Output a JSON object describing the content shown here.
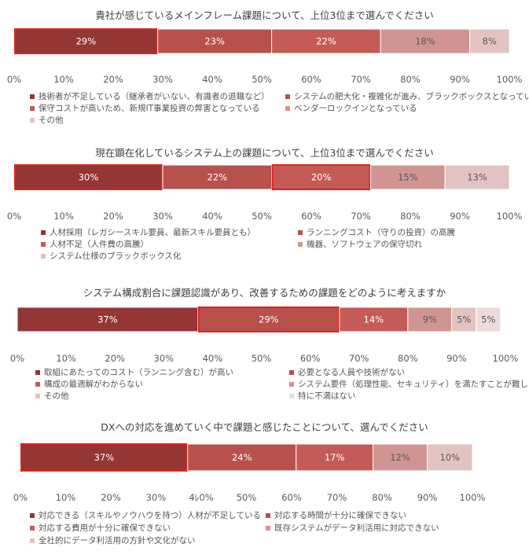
{
  "chart_data": [
    {
      "type": "bar",
      "orientation": "horizontal-stacked-100",
      "title": "貴社が感じているメインフレーム課題について、上位3位まで選んでください",
      "xlim": [
        0,
        100
      ],
      "ticks": [
        "0%",
        "10%",
        "20%",
        "30%",
        "40%",
        "50%",
        "60%",
        "70%",
        "80%",
        "90%",
        "100%"
      ],
      "series": [
        {
          "name": "技術者が不足している（継承者がいない、有識者の退職など）",
          "value": 29,
          "label": "29%",
          "highlight": true
        },
        {
          "name": "システムの肥大化・複雑化が進み、ブラックボックスとなっている",
          "value": 23,
          "label": "23%",
          "highlight": false
        },
        {
          "name": "保守コストが高いため、新規IT事業投資の弊害となっている",
          "value": 22,
          "label": "22%",
          "highlight": false
        },
        {
          "name": "ベンダーロックインとなっている",
          "value": 18,
          "label": "18%",
          "highlight": false
        },
        {
          "name": "その他",
          "value": 8,
          "label": "8%",
          "highlight": false
        }
      ]
    },
    {
      "type": "bar",
      "orientation": "horizontal-stacked-100",
      "title": "現在顕在化しているシステム上の課題について、上位3位まで選んでください",
      "xlim": [
        0,
        100
      ],
      "ticks": [
        "0%",
        "10%",
        "20%",
        "30%",
        "40%",
        "50%",
        "60%",
        "70%",
        "80%",
        "90%",
        "100%"
      ],
      "series": [
        {
          "name": "人材採用（レガシースキル要員、最新スキル要員とも）",
          "value": 30,
          "label": "30%",
          "highlight": true
        },
        {
          "name": "ランニングコスト（守りの投資）の高騰",
          "value": 22,
          "label": "22%",
          "highlight": false
        },
        {
          "name": "人材不足（人件費の高騰）",
          "value": 20,
          "label": "20%",
          "highlight": true
        },
        {
          "name": "機器、ソフトウェアの保守切れ",
          "value": 15,
          "label": "15%",
          "highlight": false
        },
        {
          "name": "システム仕様のブラックボックス化",
          "value": 13,
          "label": "13%",
          "highlight": false
        }
      ]
    },
    {
      "type": "bar",
      "orientation": "horizontal-stacked-100",
      "title": "システム構成割合に課題認識があり、改善するための課題をどのように考えますか",
      "xlim": [
        0,
        100
      ],
      "ticks": [
        "0%",
        "10%",
        "20%",
        "30%",
        "40%",
        "50%",
        "60%",
        "70%",
        "80%",
        "90%",
        "100%"
      ],
      "series": [
        {
          "name": "取組にあたってのコスト（ランニング含む）が高い",
          "value": 37,
          "label": "37%",
          "highlight": false
        },
        {
          "name": "必要となる人員や技術がない",
          "value": 29,
          "label": "29%",
          "highlight": true
        },
        {
          "name": "構成の最適解がわからない",
          "value": 14,
          "label": "14%",
          "highlight": false
        },
        {
          "name": "システム要件（処理性能、セキュリティ）を満たすことが難しい",
          "value": 9,
          "label": "9%",
          "highlight": false
        },
        {
          "name": "その他",
          "value": 5,
          "label": "5%",
          "highlight": false
        },
        {
          "name": "特に不満はない",
          "value": 5,
          "label": "5%",
          "highlight": false
        }
      ]
    },
    {
      "type": "bar",
      "orientation": "horizontal-stacked-100",
      "title": "DXへの対応を進めていく中で課題と感じたことについて、選んでください",
      "xlim": [
        0,
        100
      ],
      "ticks": [
        "0%",
        "10%",
        "20%",
        "30%",
        "4ﾚ0%",
        "50%",
        "60%",
        "70%",
        "80%",
        "90%",
        "100%"
      ],
      "series": [
        {
          "name": "対応できる（スキルやノウハウを持つ）人材が不足している",
          "value": 37,
          "label": "37%",
          "highlight": true
        },
        {
          "name": "対応する時間が十分に確保できない",
          "value": 24,
          "label": "24%",
          "highlight": false
        },
        {
          "name": "対応する費用が十分に確保できない",
          "value": 17,
          "label": "17%",
          "highlight": false
        },
        {
          "name": "既存システムがデータ利活用に対応できない",
          "value": 12,
          "label": "12%",
          "highlight": false
        },
        {
          "name": "全社的にデータ利活用の方針や文化がない",
          "value": 10,
          "label": "10%",
          "highlight": false
        }
      ]
    }
  ],
  "colors": {
    "series": [
      "#943634",
      "#b8504c",
      "#c45b57",
      "#d09592",
      "#e3c3c2",
      "#eedcdb"
    ],
    "highlight_border": "#e3211c",
    "tick_text": "#595959",
    "bar_label_dark": "#ffffff",
    "bar_label_light": "#595959"
  }
}
